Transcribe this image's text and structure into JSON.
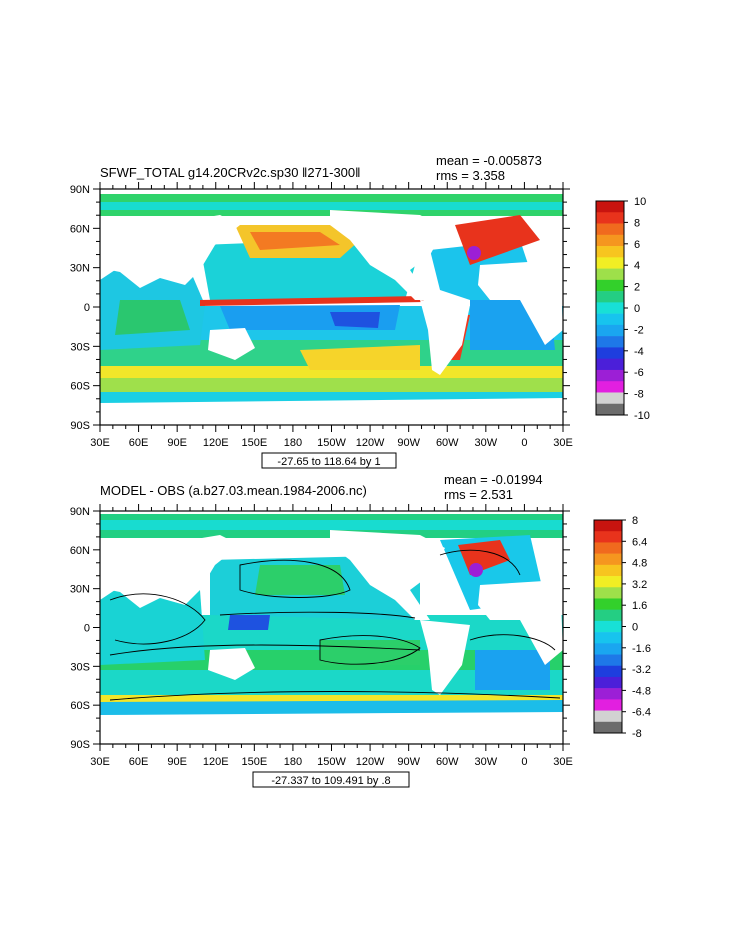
{
  "panels": [
    {
      "title": "SFWF_TOTAL g14.20CRv2c.sp30 ‖271-300‖",
      "mean": "mean = -0.005873",
      "rms": "rms = 3.358",
      "range_label": "-27.65 to 118.64 by 1",
      "colorbar_labels": [
        "10",
        "8",
        "6",
        "4",
        "2",
        "0",
        "-2",
        "-4",
        "-6",
        "-8",
        "-10"
      ],
      "contour_lines": false
    },
    {
      "title": "MODEL - OBS (a.b27.03.mean.1984-2006.nc)",
      "mean": "mean = -0.01994",
      "rms": "rms = 2.531",
      "range_label": "-27.337 to 109.491 by .8",
      "colorbar_labels": [
        "8",
        "6.4",
        "4.8",
        "3.2",
        "1.6",
        "0",
        "-1.6",
        "-3.2",
        "-4.8",
        "-6.4",
        "-8"
      ],
      "contour_lines": true
    }
  ],
  "lon_ticks": [
    "30E",
    "60E",
    "90E",
    "120E",
    "150E",
    "180",
    "150W",
    "120W",
    "90W",
    "60W",
    "30W",
    "0",
    "30E"
  ],
  "lat_ticks": [
    "90N",
    "60N",
    "30N",
    "0",
    "30S",
    "60S",
    "90S"
  ],
  "colorbar_colors": [
    "#c8140f",
    "#e8331c",
    "#f06a1e",
    "#f5961f",
    "#f7c51f",
    "#f1ee24",
    "#9ee04a",
    "#33d02b",
    "#24ce83",
    "#18e0d6",
    "#17c4ee",
    "#1aa6f0",
    "#1e78e8",
    "#1e3ede",
    "#4b1fd9",
    "#9c1fd6",
    "#e21fe0",
    "#d2d2d2",
    "#6c6c6c"
  ]
}
